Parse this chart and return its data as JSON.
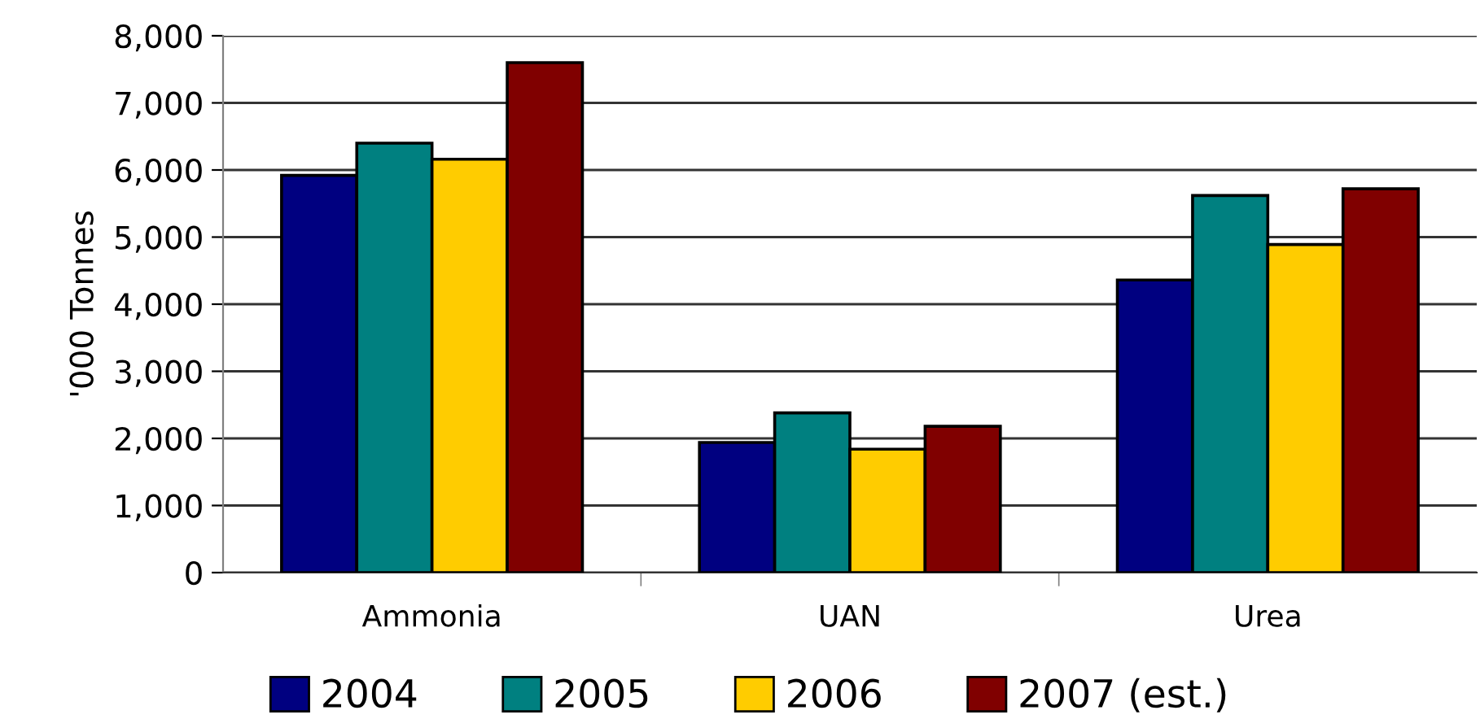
{
  "chart_data": {
    "type": "bar",
    "ylabel": "'000 Tonnes",
    "categories": [
      "Ammonia",
      "UAN",
      "Urea"
    ],
    "series": [
      {
        "name": "2004",
        "color": "#000080",
        "values": [
          5920,
          1940,
          4360
        ]
      },
      {
        "name": "2005",
        "color": "#008080",
        "values": [
          6400,
          2380,
          5620
        ]
      },
      {
        "name": "2006",
        "color": "#ffcc00",
        "values": [
          6160,
          1840,
          4890
        ]
      },
      {
        "name": "2007 (est.)",
        "color": "#800000",
        "values": [
          7600,
          2180,
          5720
        ]
      }
    ],
    "ylim": [
      0,
      8000
    ],
    "yticks": [
      {
        "value": 0,
        "label": "0"
      },
      {
        "value": 1000,
        "label": "1,000"
      },
      {
        "value": 2000,
        "label": "2,000"
      },
      {
        "value": 3000,
        "label": "3,000"
      },
      {
        "value": 4000,
        "label": "4,000"
      },
      {
        "value": 5000,
        "label": "5,000"
      },
      {
        "value": 6000,
        "label": "6,000"
      },
      {
        "value": 7000,
        "label": "7,000"
      },
      {
        "value": 8000,
        "label": "8,000"
      }
    ],
    "grid": "y",
    "legend": "bottom"
  }
}
